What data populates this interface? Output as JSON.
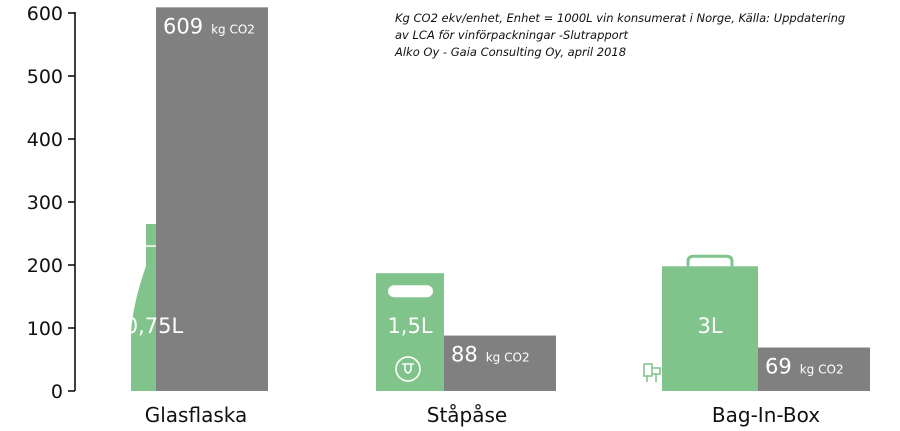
{
  "note_lines": [
    "Kg CO2 ekv/enhet, Enhet = 1000L vin konsumerat i Norge, Källa: Uppdatering",
    "av LCA för vinförpackningar -Slutrapport",
    "Alko Oy - Gaia Consulting Oy, april 2018"
  ],
  "colors": {
    "package": "#80c48b",
    "co2": "#808080",
    "axis": "#111111"
  },
  "chart_data": {
    "type": "bar",
    "categories": [
      "Glasflaska",
      "Ståpåse",
      "Bag-In-Box"
    ],
    "ylim": [
      0,
      600
    ],
    "yticks": [
      0,
      100,
      200,
      300,
      400,
      500,
      600
    ],
    "series": [
      {
        "values": [
          609,
          88,
          69
        ],
        "value_labels": [
          "609",
          "88",
          "69"
        ],
        "unit": "kg CO2"
      }
    ],
    "package_sizes": [
      "0,75L",
      "1,5L",
      "3L"
    ],
    "package_icons": [
      "wine-bottle-icon",
      "standing-pouch-icon",
      "bag-in-box-icon"
    ],
    "package_icon_values": [
      265,
      187,
      198
    ]
  }
}
